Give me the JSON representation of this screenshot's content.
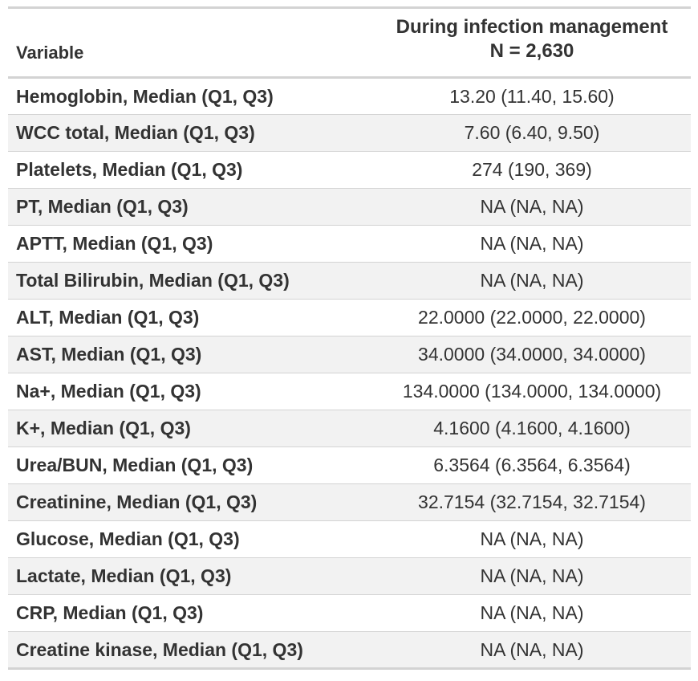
{
  "header": {
    "variable": "Variable",
    "group_title": "During infection management",
    "group_n": "N = 2,630"
  },
  "rows": [
    {
      "label": "Hemoglobin, Median (Q1, Q3)",
      "value": "13.20 (11.40, 15.60)"
    },
    {
      "label": "WCC total, Median (Q1, Q3)",
      "value": "7.60 (6.40, 9.50)"
    },
    {
      "label": "Platelets, Median (Q1, Q3)",
      "value": "274 (190, 369)"
    },
    {
      "label": "PT, Median (Q1, Q3)",
      "value": "NA (NA, NA)"
    },
    {
      "label": "APTT, Median (Q1, Q3)",
      "value": "NA (NA, NA)"
    },
    {
      "label": "Total Bilirubin, Median (Q1, Q3)",
      "value": "NA (NA, NA)"
    },
    {
      "label": "ALT, Median (Q1, Q3)",
      "value": "22.0000 (22.0000, 22.0000)"
    },
    {
      "label": "AST, Median (Q1, Q3)",
      "value": "34.0000 (34.0000, 34.0000)"
    },
    {
      "label": "Na+, Median (Q1, Q3)",
      "value": "134.0000 (134.0000, 134.0000)"
    },
    {
      "label": "K+, Median (Q1, Q3)",
      "value": "4.1600 (4.1600, 4.1600)"
    },
    {
      "label": "Urea/BUN, Median (Q1, Q3)",
      "value": "6.3564 (6.3564, 6.3564)"
    },
    {
      "label": "Creatinine, Median (Q1, Q3)",
      "value": "32.7154 (32.7154, 32.7154)"
    },
    {
      "label": "Glucose, Median (Q1, Q3)",
      "value": "NA (NA, NA)"
    },
    {
      "label": "Lactate, Median (Q1, Q3)",
      "value": "NA (NA, NA)"
    },
    {
      "label": "CRP, Median (Q1, Q3)",
      "value": "NA (NA, NA)"
    },
    {
      "label": "Creatine kinase, Median (Q1, Q3)",
      "value": "NA (NA, NA)"
    }
  ]
}
